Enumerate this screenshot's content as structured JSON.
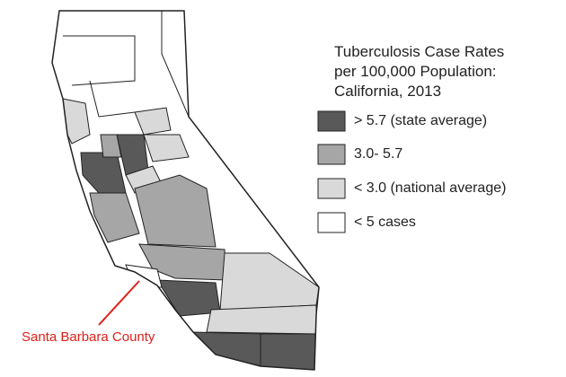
{
  "title": [
    "Tuberculosis Case Rates",
    "per 100,000 Population:",
    "California, 2013"
  ],
  "legend": [
    {
      "label": "> 5.7 (state average)",
      "color": "#595959"
    },
    {
      "label": "3.0- 5.7",
      "color": "#a6a6a6"
    },
    {
      "label": "< 3.0 (national average)",
      "color": "#d9d9d9"
    },
    {
      "label": "< 5 cases",
      "color": "#ffffff"
    }
  ],
  "annotation": {
    "text": "Santa Barbara County",
    "color": "#e0201b"
  }
}
